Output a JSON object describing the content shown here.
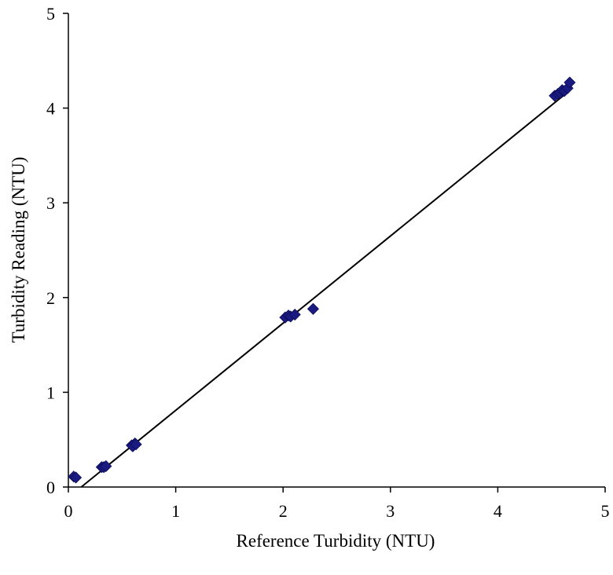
{
  "chart_data": {
    "type": "scatter",
    "title": "",
    "xlabel": "Reference Turbidity (NTU)",
    "ylabel": "Turbidity Reading (NTU)",
    "xlim": [
      0,
      5
    ],
    "ylim": [
      0,
      5
    ],
    "x_ticks": [
      "0",
      "1",
      "2",
      "3",
      "4",
      "5"
    ],
    "y_ticks": [
      "0",
      "1",
      "2",
      "3",
      "4",
      "5"
    ],
    "grid": false,
    "legend": "none",
    "colors": {
      "marker": "#1a1a80",
      "marker_stroke": "#0d0d5a",
      "line": "#000000",
      "axis": "#000000"
    },
    "series": [
      {
        "kind": "scatter",
        "marker": "diamond",
        "points": [
          [
            0.05,
            0.11
          ],
          [
            0.07,
            0.1
          ],
          [
            0.31,
            0.21
          ],
          [
            0.33,
            0.21
          ],
          [
            0.35,
            0.22
          ],
          [
            0.59,
            0.44
          ],
          [
            0.6,
            0.43
          ],
          [
            0.62,
            0.46
          ],
          [
            0.63,
            0.45
          ],
          [
            2.02,
            1.79
          ],
          [
            2.05,
            1.81
          ],
          [
            2.07,
            1.8
          ],
          [
            2.11,
            1.82
          ],
          [
            2.28,
            1.88
          ],
          [
            4.53,
            4.13
          ],
          [
            4.56,
            4.15
          ],
          [
            4.58,
            4.16
          ],
          [
            4.6,
            4.19
          ],
          [
            4.62,
            4.18
          ],
          [
            4.65,
            4.21
          ],
          [
            4.67,
            4.27
          ]
        ]
      },
      {
        "kind": "trendline",
        "x": [
          0.12,
          4.62
        ],
        "y": [
          0.0,
          4.14
        ]
      }
    ]
  }
}
